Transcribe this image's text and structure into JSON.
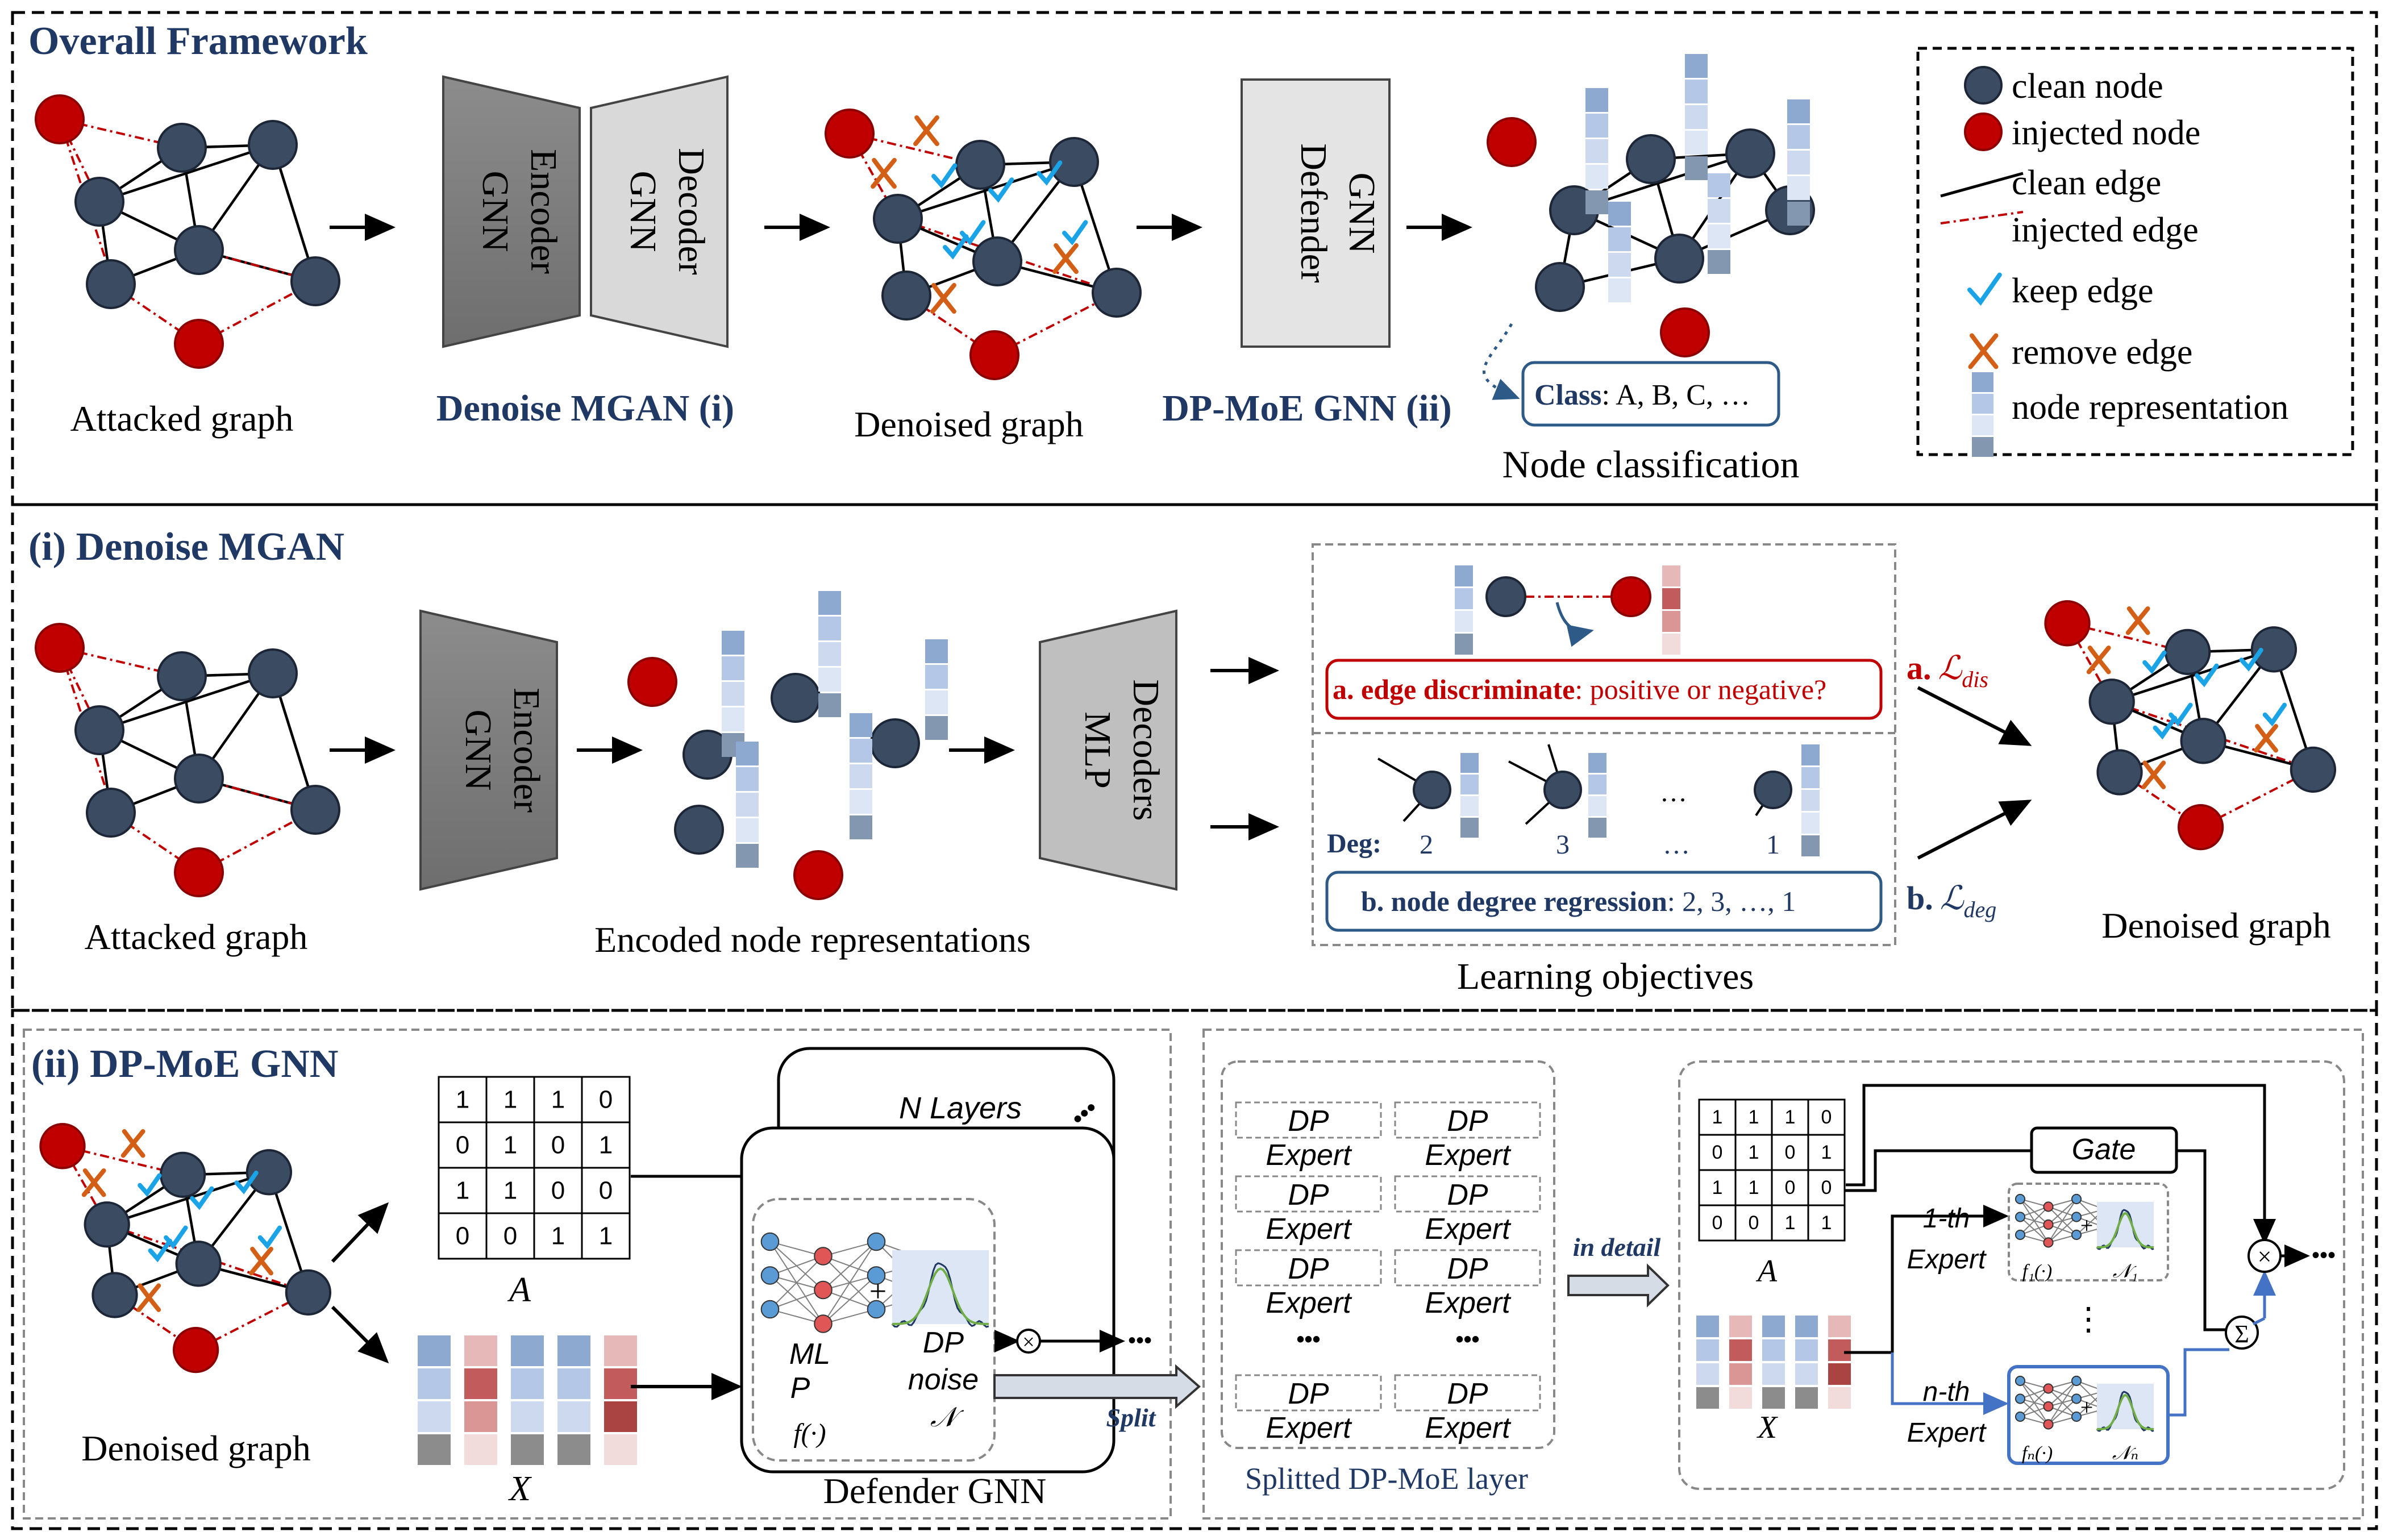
{
  "colors": {
    "clean_node": "#3b4b62",
    "injected_node": "#c00000",
    "injected_edge": "#c00000",
    "keep_mark": "#1aa3e6",
    "remove_mark": "#d35f16",
    "title_blue": "#1f3864",
    "rep_blue": "#b4c7e7",
    "rep_red": "#c25b5b"
  },
  "overall": {
    "title": "Overall Framework",
    "attacked_graph": "Attacked graph",
    "gnn_encoder": [
      "GNN",
      "Encoder"
    ],
    "gnn_decoder": [
      "GNN",
      "Decoder"
    ],
    "denoise_label": "Denoise MGAN (i)",
    "denoised_graph": "Denoised graph",
    "defender_gnn": [
      "Defender",
      "GNN"
    ],
    "dpmoe_label": "DP-MoE GNN (ii)",
    "class_bold": "Class",
    "class_rest": ": A, B, C, …",
    "node_classification": "Node classification"
  },
  "legend": {
    "items": [
      {
        "icon": "clean-node-icon",
        "label": "clean node"
      },
      {
        "icon": "injected-node-icon",
        "label": "injected node"
      },
      {
        "icon": "clean-edge-icon",
        "label": "clean edge"
      },
      {
        "icon": "injected-edge-icon",
        "label": "injected edge"
      },
      {
        "icon": "keep-edge-icon",
        "label": "keep edge"
      },
      {
        "icon": "remove-edge-icon",
        "label": "remove edge"
      },
      {
        "icon": "node-representation-icon",
        "label": "node representation"
      }
    ]
  },
  "denoise": {
    "title": "(i) Denoise MGAN",
    "attacked_graph": "Attacked graph",
    "gnn_encoder": [
      "GNN",
      "Encoder"
    ],
    "encoded_reps": "Encoded node representations",
    "mlp_decoders": [
      "MLP",
      "Decoders"
    ],
    "edge_disc_bold": "a. edge discriminate",
    "edge_disc_rest": ": positive or negative?",
    "deg_label": "Deg:",
    "deg_values": [
      "2",
      "3",
      "…",
      "1"
    ],
    "ellipsis": "…",
    "node_deg_bold": "b. node degree regression",
    "node_deg_rest": ": 2, 3, …, 1",
    "learning_objectives": "Learning objectives",
    "loss_a_prefix": "a.",
    "loss_a": "ℒ",
    "loss_a_sub": "dis",
    "loss_b_prefix": "b.",
    "loss_b": "ℒ",
    "loss_b_sub": "deg",
    "denoised_graph": "Denoised graph"
  },
  "dpmoe": {
    "title": "(ii) DP-MoE GNN",
    "denoised_graph": "Denoised graph",
    "adjacency": [
      [
        "1",
        "1",
        "1",
        "0"
      ],
      [
        "0",
        "1",
        "0",
        "1"
      ],
      [
        "1",
        "1",
        "0",
        "0"
      ],
      [
        "0",
        "0",
        "1",
        "1"
      ]
    ],
    "A": "A",
    "X": "X",
    "n_layers": "N Layers",
    "mlp_label": [
      "ML",
      "P"
    ],
    "f_label": "f(·)",
    "dp_noise": [
      "DP",
      "noise",
      "𝒩"
    ],
    "split": "Split",
    "defender_gnn": "Defender GNN",
    "dp_expert_top": "DP",
    "dp_expert_bottom": "Expert",
    "dots": "•••",
    "splitted_label": "Splitted DP-MoE layer",
    "in_detail": "in detail",
    "gate": "Gate",
    "expert_1": [
      "1-th",
      "Expert"
    ],
    "expert_n": [
      "n-th",
      "Expert"
    ],
    "f1": "f₁(·)",
    "n1": "𝒩₁",
    "fn": "fₙ(·)",
    "nn": "𝒩ₙ",
    "vdots": "⋮",
    "sigma": "Σ",
    "times": "×",
    "trail_dots": "•••"
  }
}
